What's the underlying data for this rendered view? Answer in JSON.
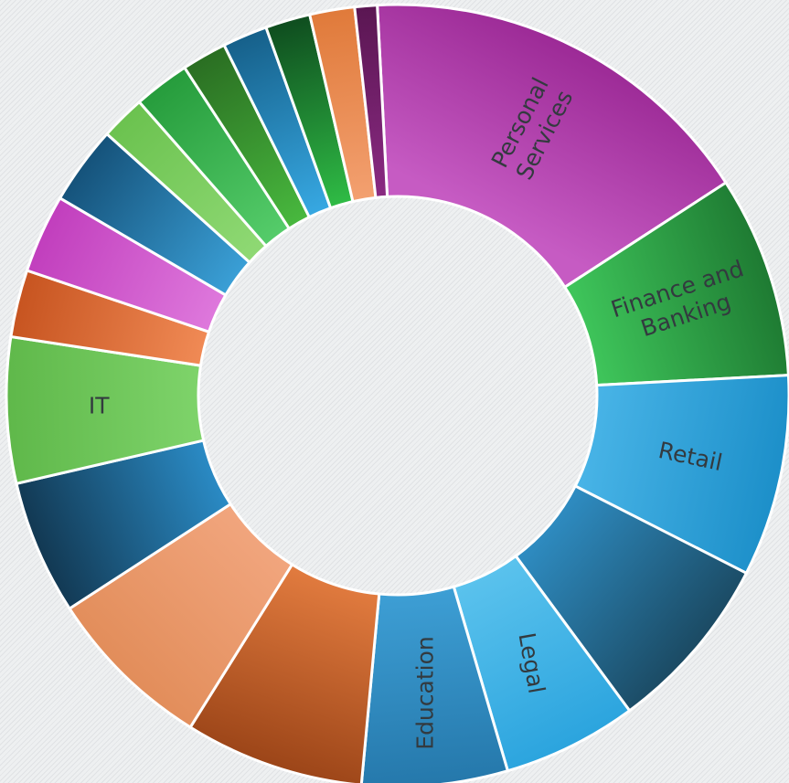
{
  "chart_data": {
    "type": "pie",
    "variant": "donut",
    "title": "",
    "legend": "none",
    "slices": [
      {
        "label": "Personal Services",
        "value": 18.0,
        "color": "#c65bc3",
        "dark": "#9c2a96"
      },
      {
        "label": "Finance and Banking",
        "value": 9.0,
        "color": "#3ec45a",
        "dark": "#1e7a32"
      },
      {
        "label": "Retail",
        "value": 9.0,
        "color": "#47b3e6",
        "dark": "#1c8fc9"
      },
      {
        "label": "",
        "value": 8.0,
        "color": "#2e8bc0",
        "dark": "#1b4a63"
      },
      {
        "label": "Legal",
        "value": 6.0,
        "color": "#5ac2ed",
        "dark": "#2ba4de"
      },
      {
        "label": "Education",
        "value": 6.5,
        "color": "#3d9ed4",
        "dark": "#2578ab"
      },
      {
        "label": "",
        "value": 8.0,
        "color": "#e07a3e",
        "dark": "#9c4518"
      },
      {
        "label": "",
        "value": 7.5,
        "color": "#f1a57d",
        "dark": "#e28d5a"
      },
      {
        "label": "",
        "value": 6.0,
        "color": "#2a8ac4",
        "dark": "#123852"
      },
      {
        "label": "IT",
        "value": 6.5,
        "color": "#7ed36a",
        "dark": "#5fb84a"
      },
      {
        "label": "",
        "value": 3.0,
        "color": "#f08a55",
        "dark": "#c75420"
      },
      {
        "label": "",
        "value": 3.5,
        "color": "#de78dc",
        "dark": "#c13ebd"
      },
      {
        "label": "",
        "value": 3.5,
        "color": "#3a9fd6",
        "dark": "#15527a"
      },
      {
        "label": "",
        "value": 2.0,
        "color": "#8fd974",
        "dark": "#6bc24f"
      },
      {
        "label": "",
        "value": 2.5,
        "color": "#55cc6a",
        "dark": "#269c3c"
      },
      {
        "label": "",
        "value": 2.0,
        "color": "#48b83e",
        "dark": "#2a6e22"
      },
      {
        "label": "",
        "value": 2.0,
        "color": "#37a8e2",
        "dark": "#16608a"
      },
      {
        "label": "",
        "value": 2.0,
        "color": "#2fbb45",
        "dark": "#0f4d1f"
      },
      {
        "label": "",
        "value": 2.0,
        "color": "#f3a070",
        "dark": "#e07a3a"
      },
      {
        "label": "",
        "value": 1.0,
        "color": "#8a2a82",
        "dark": "#5a1652"
      }
    ]
  }
}
